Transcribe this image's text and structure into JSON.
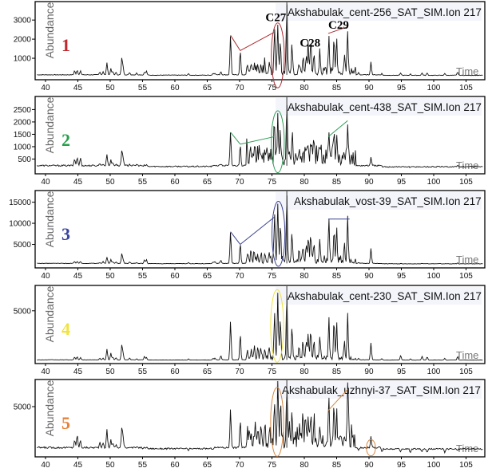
{
  "chart_data": {
    "type": "line",
    "title": "",
    "xlabel": "Time",
    "ylabel": "Abundance",
    "xlim": [
      38.4,
      107.9
    ],
    "x_ticks": [
      40,
      45,
      50,
      55,
      60,
      65,
      70,
      75,
      80,
      85,
      90,
      95,
      100,
      105
    ],
    "grid": false,
    "peaks_rt": [
      44.5,
      44.9,
      45.4,
      48.4,
      48.9,
      49.5,
      50.1,
      50.4,
      50.9,
      51.8,
      52.0,
      53.0,
      54.1,
      55.3,
      55.6,
      62.1,
      65.9,
      66.2,
      67.1,
      68.6,
      70.1,
      71.2,
      71.8,
      72.3,
      72.8,
      73.3,
      73.9,
      74.6,
      75.4,
      75.9,
      76.3,
      77.3,
      78.1,
      79.2,
      79.8,
      80.3,
      80.6,
      81.0,
      81.5,
      82.4,
      83.8,
      84.6,
      85.0,
      86.2,
      86.7,
      88.4,
      90.3,
      92.0,
      94.9,
      96.4,
      98.2,
      99.0,
      101.7,
      103.7
    ],
    "panels": [
      {
        "number": "1",
        "number_color": "#c0282d",
        "sample": "Akshabulak_cent-256_SAT_SIM.Ion 217",
        "ylim": [
          0,
          3800
        ],
        "y_ticks": [
          1000,
          2000,
          3000
        ],
        "baseline": 130,
        "heights": [
          350,
          380,
          360,
          280,
          300,
          780,
          450,
          300,
          250,
          1000,
          500,
          250,
          230,
          300,
          350,
          200,
          230,
          220,
          300,
          2200,
          1400,
          600,
          650,
          700,
          650,
          600,
          700,
          800,
          2300,
          2700,
          1900,
          3800,
          1500,
          700,
          900,
          1000,
          1500,
          1700,
          1200,
          1300,
          2100,
          1900,
          2000,
          1000,
          2300,
          250,
          800,
          200,
          250,
          200,
          250,
          250,
          230,
          300
        ],
        "annotations": {
          "color": "#b02a30",
          "labels": [
            {
              "text": "C27",
              "rt": 75.6,
              "value": 2950
            },
            {
              "text": "C28",
              "rt": 80.9,
              "value": 1600
            },
            {
              "text": "C29",
              "rt": 85.3,
              "value": 2550
            }
          ],
          "ellipses": [
            {
              "rt_center": 75.9,
              "rt_half_width": 1.0,
              "value_center": 1150,
              "value_half_height": 1700
            }
          ],
          "lines": [
            {
              "from": [
                68.6,
                2200
              ],
              "to": [
                70.1,
                1400
              ]
            },
            {
              "from": [
                70.1,
                1400
              ],
              "to": [
                75.3,
                2350
              ]
            },
            {
              "from": [
                83.7,
                2300
              ],
              "to": [
                86.7,
                2650
              ]
            }
          ]
        }
      },
      {
        "number": "2",
        "number_color": "#27a04a",
        "sample": "Akshabulak_cent-438_SAT_SIM.Ion 217",
        "ylim": [
          0,
          2900
        ],
        "y_ticks": [
          500,
          1000,
          1500,
          2000,
          2500
        ],
        "baseline": 230,
        "heights": [
          500,
          580,
          550,
          330,
          300,
          700,
          450,
          350,
          300,
          850,
          500,
          300,
          280,
          280,
          300,
          220,
          250,
          250,
          300,
          1580,
          1100,
          600,
          600,
          650,
          600,
          550,
          650,
          700,
          1400,
          1900,
          1350,
          2800,
          1200,
          600,
          700,
          800,
          950,
          1050,
          800,
          900,
          1350,
          1300,
          1350,
          600,
          1900,
          230,
          550,
          200,
          220,
          200,
          220,
          230,
          220,
          300
        ],
        "annotations": {
          "color": "#2e9c55",
          "labels": [],
          "ellipses": [
            {
              "rt_center": 75.9,
              "rt_half_width": 1.0,
              "value_center": 1200,
              "value_half_height": 1250
            }
          ],
          "lines": [
            {
              "from": [
                68.6,
                1580
              ],
              "to": [
                70.1,
                1100
              ]
            },
            {
              "from": [
                70.1,
                1100
              ],
              "to": [
                75.3,
                1400
              ]
            },
            {
              "from": [
                83.7,
                1400
              ],
              "to": [
                86.7,
                2050
              ]
            }
          ]
        }
      },
      {
        "number": "3",
        "number_color": "#3a44a0",
        "sample": "Akshabulak_vost-39_SAT_SIM.Ion 217",
        "ylim": [
          0,
          17000
        ],
        "y_ticks": [
          5000,
          10000,
          15000
        ],
        "baseline": 500,
        "heights": [
          900,
          1000,
          900,
          700,
          900,
          2000,
          1400,
          900,
          800,
          2800,
          1300,
          800,
          700,
          1400,
          1500,
          800,
          900,
          900,
          1300,
          8000,
          5300,
          2500,
          2600,
          2700,
          2400,
          2300,
          2800,
          3000,
          11500,
          13000,
          9000,
          16500,
          7000,
          3500,
          4500,
          5000,
          6000,
          6500,
          4500,
          5500,
          11200,
          8500,
          8800,
          4500,
          11300,
          700,
          4000,
          500,
          600,
          500,
          600,
          600,
          500,
          700
        ],
        "annotations": {
          "color": "#3a428f",
          "labels": [],
          "ellipses": [
            {
              "rt_center": 76.0,
              "rt_half_width": 1.0,
              "value_center": 7500,
              "value_half_height": 7700
            }
          ],
          "lines": [
            {
              "from": [
                68.6,
                8000
              ],
              "to": [
                70.1,
                5000
              ]
            },
            {
              "from": [
                70.1,
                5000
              ],
              "to": [
                75.4,
                11500
              ]
            },
            {
              "from": [
                83.7,
                11000
              ],
              "to": [
                87.0,
                11000
              ]
            }
          ]
        }
      },
      {
        "number": "4",
        "number_color": "#f2e23a",
        "sample": "Akshabulak_cent-230_SAT_SIM.Ion 217",
        "ylim": [
          0,
          7200
        ],
        "y_ticks": [
          5000
        ],
        "baseline": 130,
        "heights": [
          400,
          450,
          350,
          300,
          300,
          1200,
          800,
          400,
          350,
          1600,
          700,
          300,
          250,
          500,
          400,
          250,
          300,
          300,
          550,
          4000,
          2700,
          1000,
          1100,
          1200,
          1000,
          1000,
          1200,
          1300,
          4700,
          6700,
          4200,
          7100,
          3000,
          1400,
          1800,
          2000,
          2500,
          3000,
          2000,
          2400,
          4200,
          3700,
          3800,
          1800,
          4400,
          300,
          1800,
          250,
          600,
          250,
          500,
          450,
          300,
          500
        ],
        "annotations": {
          "color": "#efe23c",
          "labels": [],
          "ellipses": [
            {
              "rt_center": 75.8,
              "rt_half_width": 1.0,
              "value_center": 3500,
              "value_half_height": 3600
            }
          ],
          "lines": []
        }
      },
      {
        "number": "5",
        "number_color": "#e8823a",
        "sample": "Akshabulak_uzhnyi-37_SAT_SIM.Ion 217",
        "ylim": [
          0,
          7500
        ],
        "y_ticks": [
          5000
        ],
        "baseline": 700,
        "heights": [
          1500,
          2100,
          1500,
          1200,
          1200,
          2600,
          1500,
          1200,
          1000,
          2800,
          1700,
          800,
          700,
          800,
          900,
          500,
          700,
          700,
          800,
          4700,
          3600,
          1500,
          1600,
          1800,
          1400,
          1300,
          1700,
          1800,
          4400,
          6300,
          4300,
          7300,
          3700,
          1800,
          2300,
          2600,
          3000,
          3200,
          2400,
          3000,
          4500,
          4000,
          4100,
          1800,
          6600,
          500,
          1800,
          300,
          400,
          300,
          400,
          350,
          350,
          500
        ],
        "annotations": {
          "color": "#d8873f",
          "labels": [],
          "ellipses": [
            {
              "rt_center": 75.8,
              "rt_half_width": 1.0,
              "value_center": 3400,
              "value_half_height": 3600
            },
            {
              "rt_center": 90.3,
              "rt_half_width": 0.7,
              "value_center": 700,
              "value_half_height": 850
            }
          ],
          "lines": [
            {
              "from": [
                83.7,
                4600
              ],
              "to": [
                86.7,
                6800
              ]
            }
          ]
        }
      }
    ]
  }
}
